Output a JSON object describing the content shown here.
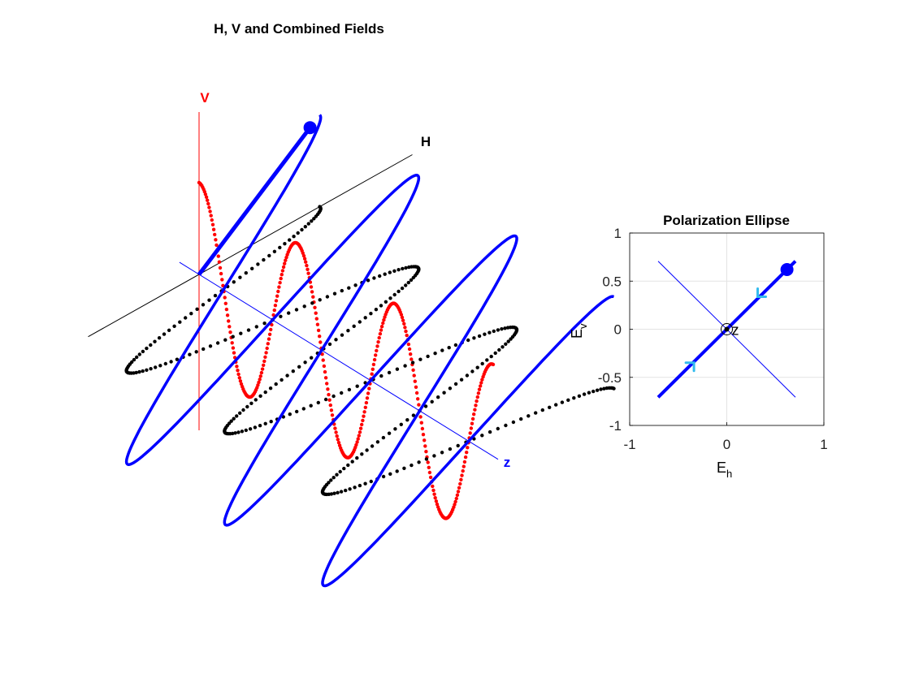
{
  "chart_data": [
    {
      "type": "line",
      "title": "H, V and Combined Fields",
      "axis_labels": {
        "h": "H",
        "v": "V",
        "z": "z"
      },
      "z_range": [
        0,
        3
      ],
      "amplitude_range": [
        -1,
        1
      ],
      "periods": 3,
      "series": [
        {
          "name": "",
          "color": "#ff0000",
          "component": "V",
          "amplitude": 0.707,
          "phase_deg": 0,
          "marker": "dots"
        },
        {
          "name": "",
          "color": "#000000",
          "component": "H",
          "amplitude": 0.707,
          "phase_deg": 0,
          "marker": "dots"
        },
        {
          "name": "",
          "color": "#0000ff",
          "component": "H+V",
          "amplitude": 1.0,
          "phase_deg": 0,
          "marker": "line"
        }
      ],
      "current_vector": {
        "h": 0.62,
        "v": 0.62,
        "color": "#0000ff"
      },
      "colors": {
        "h_axis": "#000000",
        "v_axis": "#ff0000",
        "z_axis": "#0000ff"
      }
    },
    {
      "type": "line",
      "title": "Polarization Ellipse",
      "xlabel": "E",
      "xlabel_sub": "h",
      "ylabel": "E",
      "ylabel_sub": "v",
      "xlim": [
        -1,
        1
      ],
      "ylim": [
        -1,
        1
      ],
      "xticks": [
        -1,
        0,
        1
      ],
      "xtick_labels": [
        "-1",
        "0",
        "1"
      ],
      "yticks": [
        -1,
        -0.5,
        0,
        0.5,
        1
      ],
      "ytick_labels": [
        "-1",
        "-0.5",
        "0",
        "0.5",
        "1"
      ],
      "grid": true,
      "center_label": "z",
      "ellipse": {
        "from": [
          -0.707,
          -0.707
        ],
        "to": [
          0.707,
          0.707
        ],
        "color": "#0000ff"
      },
      "orthogonal_axis": {
        "from": [
          -0.707,
          0.707
        ],
        "to": [
          0.707,
          -0.707
        ],
        "color": "#0000ff"
      },
      "current_point": {
        "x": 0.62,
        "y": 0.62
      },
      "direction_arrows": [
        {
          "x": 0.36,
          "y": 0.38,
          "dir": "down-left",
          "color": "#33bbee"
        },
        {
          "x": -0.38,
          "y": -0.39,
          "dir": "up-right",
          "color": "#33bbee"
        }
      ]
    }
  ]
}
